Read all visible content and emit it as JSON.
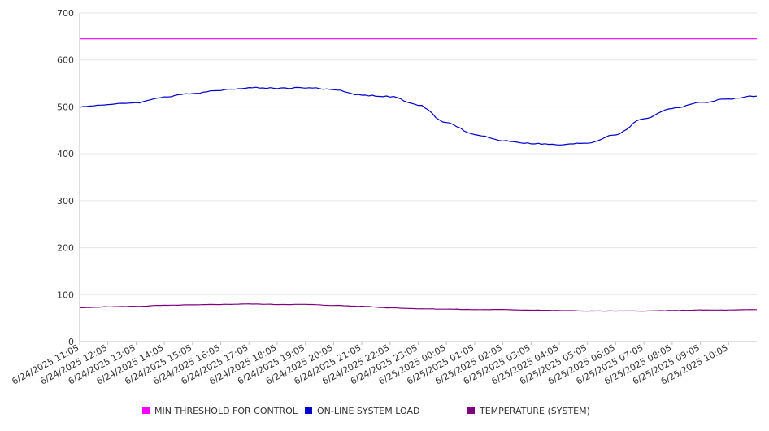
{
  "chart_data": {
    "type": "line",
    "title": "",
    "xlabel": "",
    "ylabel": "",
    "ylim": [
      0,
      700
    ],
    "yticks": [
      0,
      100,
      200,
      300,
      400,
      500,
      600,
      700
    ],
    "grid": true,
    "legend_position": "bottom",
    "x_tick_labels": [
      "6/24/2025 11:05",
      "6/24/2025 12:05",
      "6/24/2025 13:05",
      "6/24/2025 14:05",
      "6/24/2025 15:05",
      "6/24/2025 16:05",
      "6/24/2025 17:05",
      "6/24/2025 18:05",
      "6/24/2025 19:05",
      "6/24/2025 20:05",
      "6/24/2025 21:05",
      "6/24/2025 22:05",
      "6/24/2025 23:05",
      "6/25/2025 00:05",
      "6/25/2025 01:05",
      "6/25/2025 02:05",
      "6/25/2025 03:05",
      "6/25/2025 04:05",
      "6/25/2025 05:05",
      "6/25/2025 06:05",
      "6/25/2025 07:05",
      "6/25/2025 08:05",
      "6/25/2025 09:05",
      "6/25/2025 10:05"
    ],
    "x": [
      "6/24/2025 11:05",
      "6/24/2025 12:05",
      "6/24/2025 13:05",
      "6/24/2025 14:05",
      "6/24/2025 15:05",
      "6/24/2025 16:05",
      "6/24/2025 17:05",
      "6/24/2025 18:05",
      "6/24/2025 19:05",
      "6/24/2025 20:05",
      "6/24/2025 21:05",
      "6/24/2025 22:05",
      "6/24/2025 23:05",
      "6/25/2025 00:05",
      "6/25/2025 01:05",
      "6/25/2025 02:05",
      "6/25/2025 03:05",
      "6/25/2025 04:05",
      "6/25/2025 05:05",
      "6/25/2025 06:05",
      "6/25/2025 07:05",
      "6/25/2025 08:05",
      "6/25/2025 09:05",
      "6/25/2025 10:05",
      "6/25/2025 11:05"
    ],
    "series": [
      {
        "name": "MIN THRESHOLD FOR CONTROL",
        "color": "#ff00ff",
        "values": [
          645,
          645,
          645,
          645,
          645,
          645,
          645,
          645,
          645,
          645,
          645,
          645,
          645,
          645,
          645,
          645,
          645,
          645,
          645,
          645,
          645,
          645,
          645,
          645,
          645
        ]
      },
      {
        "name": "ON-LINE SYSTEM LOAD",
        "color": "#0000cc",
        "values": [
          500,
          505,
          509,
          521,
          529,
          536,
          541,
          540,
          541,
          537,
          525,
          522,
          504,
          466,
          441,
          428,
          422,
          419,
          423,
          441,
          475,
          497,
          509,
          517,
          523
        ]
      },
      {
        "name": "TEMPERATURE (SYSTEM)",
        "color": "#800080",
        "values": [
          72,
          74,
          75,
          77,
          78,
          79,
          80,
          79,
          79,
          77,
          75,
          72,
          70,
          69,
          68,
          68,
          67,
          66,
          65,
          65,
          65,
          66,
          67,
          67,
          68
        ]
      }
    ]
  }
}
